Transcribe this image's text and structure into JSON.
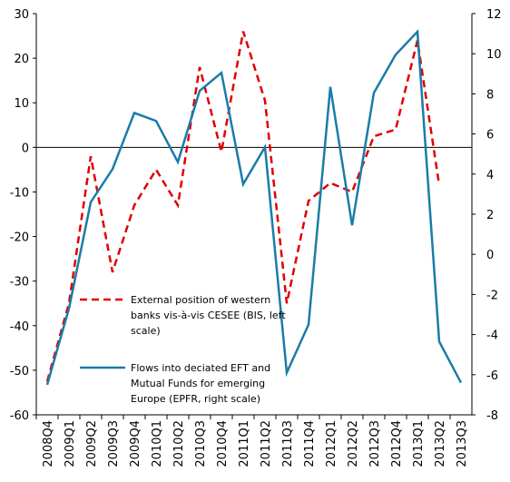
{
  "chart_data": {
    "type": "line",
    "categories": [
      "2008Q4",
      "2009Q1",
      "2009Q2",
      "2009Q3",
      "2009Q4",
      "2010Q1",
      "2010Q2",
      "2010Q3",
      "2010Q4",
      "2011Q1",
      "2011Q2",
      "2011Q3",
      "2011Q4",
      "2012Q1",
      "2012Q2",
      "2012Q3",
      "2012Q4",
      "2013Q1",
      "2013Q2",
      "2013Q3"
    ],
    "series": [
      {
        "name": "External position of western banks vis-à-vis CESEE (BIS, left scale)",
        "color": "#e00000",
        "dash": true,
        "values": [
          -52.5,
          -35,
          -2,
          -28,
          -13,
          -5,
          -13,
          18,
          -1,
          26,
          10.5,
          -35,
          -12,
          -8,
          -10,
          2.5,
          4,
          24,
          -8.5,
          null
        ]
      },
      {
        "name": "Flows into deciated EFT and Mutual Funds for emerging Europe (EPFR, right scale)",
        "color": "#1a7ca8",
        "axis": "y2",
        "values": [
          -6.5,
          -2.7,
          2.6,
          4.25,
          7.05,
          6.65,
          4.6,
          8.15,
          9.05,
          3.5,
          5.35,
          -5.9,
          -3.5,
          8.35,
          1.45,
          8.05,
          9.95,
          11.1,
          -4.35,
          -6.4
        ]
      }
    ],
    "ylim": [
      -60,
      30
    ],
    "yticks": [
      -60,
      -50,
      -40,
      -30,
      -20,
      -10,
      0,
      10,
      20,
      30
    ],
    "y2lim": [
      -8,
      12
    ],
    "y2ticks": [
      -8,
      -6,
      -4,
      -2,
      0,
      2,
      4,
      6,
      8,
      10,
      12
    ]
  }
}
